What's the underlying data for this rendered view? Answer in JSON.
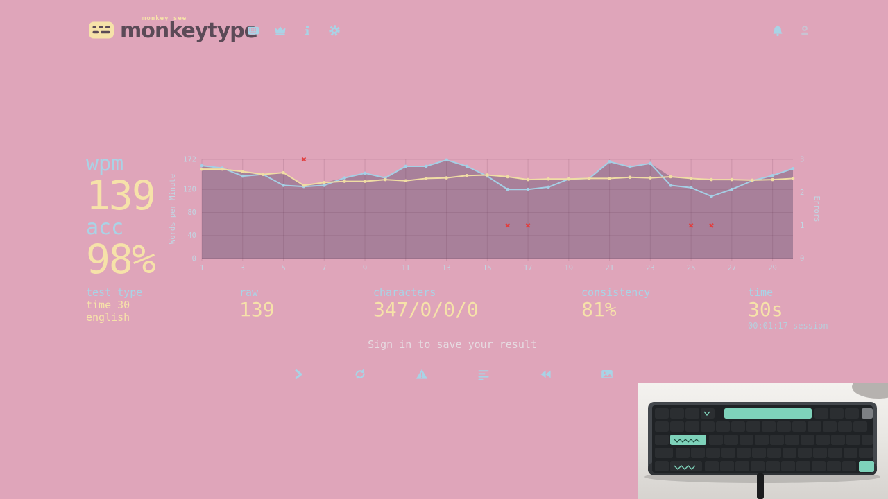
{
  "header": {
    "brand_top": "monkey see",
    "brand": "monkeytype",
    "nav_icons": [
      "keyboard-icon",
      "crown-icon",
      "info-icon",
      "gear-icon"
    ],
    "right_icons": [
      "bell-icon",
      "user-icon"
    ]
  },
  "results": {
    "wpm_label": "wpm",
    "wpm_value": "139",
    "acc_label": "acc",
    "acc_value": "98%"
  },
  "test_type": {
    "label": "test type",
    "line1": "time 30",
    "line2": "english"
  },
  "stats": [
    {
      "label": "raw",
      "value": "139"
    },
    {
      "label": "characters",
      "value": "347/0/0/0"
    },
    {
      "label": "consistency",
      "value": "81%"
    },
    {
      "label": "time",
      "value": "30s",
      "note": "00:01:17 session"
    }
  ],
  "signin": {
    "link": "Sign in",
    "rest": " to save your result"
  },
  "action_icons": [
    "next-test-icon",
    "repeat-test-icon",
    "practice-words-icon",
    "words-history-icon",
    "watch-replay-icon",
    "copy-screenshot-icon"
  ],
  "chart_data": {
    "type": "line",
    "ylabel_left": "Words per Minute",
    "ylabel_right": "Errors",
    "x": [
      1,
      2,
      3,
      4,
      5,
      6,
      7,
      8,
      9,
      10,
      11,
      12,
      13,
      14,
      15,
      16,
      17,
      18,
      19,
      20,
      21,
      22,
      23,
      24,
      25,
      26,
      27,
      28,
      29,
      30
    ],
    "xticks": [
      1,
      3,
      5,
      7,
      9,
      11,
      13,
      15,
      17,
      19,
      21,
      23,
      25,
      27,
      29
    ],
    "yticks_left": [
      0,
      40,
      80,
      120,
      172
    ],
    "yticks_right": [
      0,
      1,
      2,
      3
    ],
    "ylim_left": [
      0,
      172
    ],
    "ylim_right": [
      0,
      3
    ],
    "series": [
      {
        "name": "wpm",
        "color": "#f0dda4",
        "values": [
          155,
          155,
          151,
          146,
          149,
          127,
          132,
          134,
          134,
          137,
          135,
          139,
          140,
          144,
          145,
          142,
          137,
          138,
          138,
          139,
          139,
          141,
          140,
          142,
          139,
          137,
          137,
          136,
          137,
          139
        ]
      },
      {
        "name": "raw",
        "color": "#a5cfe5",
        "values": [
          161,
          157,
          143,
          146,
          127,
          125,
          127,
          140,
          148,
          140,
          160,
          160,
          171,
          160,
          143,
          120,
          120,
          124,
          138,
          139,
          168,
          159,
          165,
          127,
          123,
          108,
          120,
          135,
          144,
          156
        ]
      }
    ],
    "errors": [
      {
        "x": 6,
        "count": 3
      },
      {
        "x": 16,
        "count": 1
      },
      {
        "x": 17,
        "count": 1
      },
      {
        "x": 25,
        "count": 1
      },
      {
        "x": 26,
        "count": 1
      }
    ],
    "fill_color": "#a8809a",
    "grid_color": "rgba(90,45,70,0.14)",
    "tick_color": "#c2d5e2",
    "error_color": "#e23d3d",
    "legend_position": "none",
    "grid": true
  },
  "colors": {
    "background": "#dfa5ba",
    "main": "#f6e2a9",
    "sub": "#a9d3e6",
    "text_dark": "#5b4a57",
    "pale_text": "#e6dbe1",
    "error": "#e23d3d"
  }
}
